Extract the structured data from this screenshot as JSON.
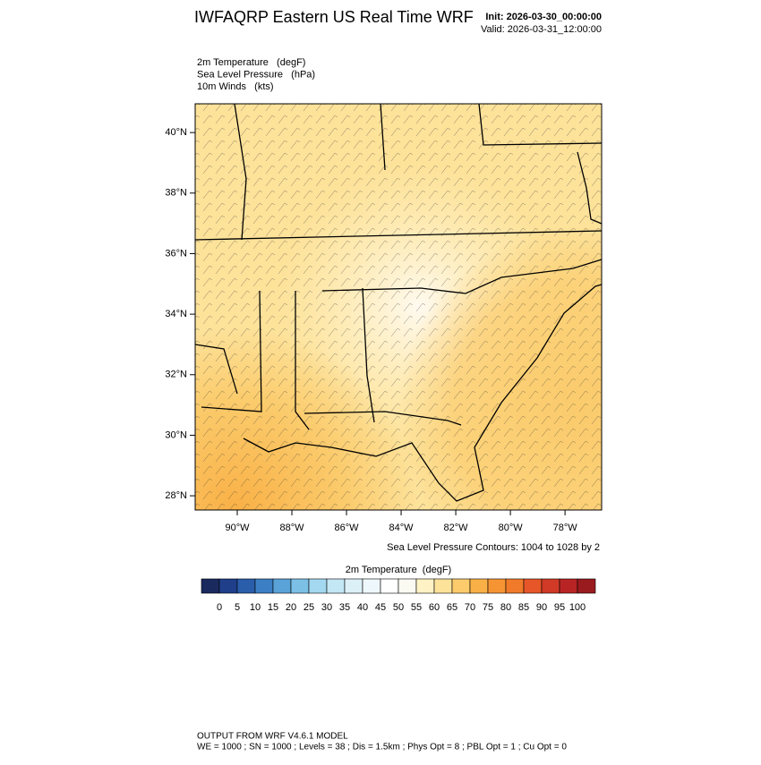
{
  "header": {
    "title": "IWFAQRP Eastern US Real Time WRF",
    "init": "Init: 2026-03-30_00:00:00",
    "valid": "Valid: 2026-03-31_12:00:00"
  },
  "fields": [
    "2m Temperature   (degF)",
    "Sea Level Pressure   (hPa)",
    "10m Winds   (kts)"
  ],
  "map": {
    "lon_range": [
      -91.54,
      -76.66
    ],
    "lat_range": [
      27.53,
      40.95
    ],
    "lat_ticks": [
      {
        "value": 28,
        "label": "28°N"
      },
      {
        "value": 30,
        "label": "30°N"
      },
      {
        "value": 32,
        "label": "32°N"
      },
      {
        "value": 34,
        "label": "34°N"
      },
      {
        "value": 36,
        "label": "36°N"
      },
      {
        "value": 38,
        "label": "38°N"
      },
      {
        "value": 40,
        "label": "40°N"
      }
    ],
    "lon_ticks": [
      {
        "value": -90,
        "label": "90°W"
      },
      {
        "value": -88,
        "label": "88°W"
      },
      {
        "value": -86,
        "label": "86°W"
      },
      {
        "value": -84,
        "label": "84°W"
      },
      {
        "value": -82,
        "label": "82°W"
      },
      {
        "value": -80,
        "label": "80°W"
      },
      {
        "value": -78,
        "label": "78°W"
      }
    ]
  },
  "contour_note": "Sea Level Pressure Contours: 1004 to 1028 by 2",
  "colorbar": {
    "title": "2m Temperature  (degF)",
    "colors": [
      "#1b2a5e",
      "#1f3f8a",
      "#2a5eab",
      "#3c7fc4",
      "#5aa3d8",
      "#7cc0e6",
      "#a3d8f0",
      "#c4e7f5",
      "#dcf0f8",
      "#eef7fb",
      "#ffffff",
      "#fbfaf2",
      "#fff2c4",
      "#fde29a",
      "#fbcb6c",
      "#f9b046",
      "#f69433",
      "#f07a2a",
      "#e65628",
      "#d03a26",
      "#b82424",
      "#9a1b1e"
    ],
    "ticks": [
      0,
      5,
      10,
      15,
      20,
      25,
      30,
      35,
      40,
      45,
      50,
      55,
      60,
      65,
      70,
      75,
      80,
      85,
      90,
      95,
      100
    ]
  },
  "footer": [
    "OUTPUT FROM WRF V4.6.1 MODEL",
    "WE = 1000 ; SN = 1000 ; Levels = 38 ; Dis = 1.5km ; Phys Opt = 8 ; PBL Opt = 1 ; Cu Opt = 0"
  ]
}
